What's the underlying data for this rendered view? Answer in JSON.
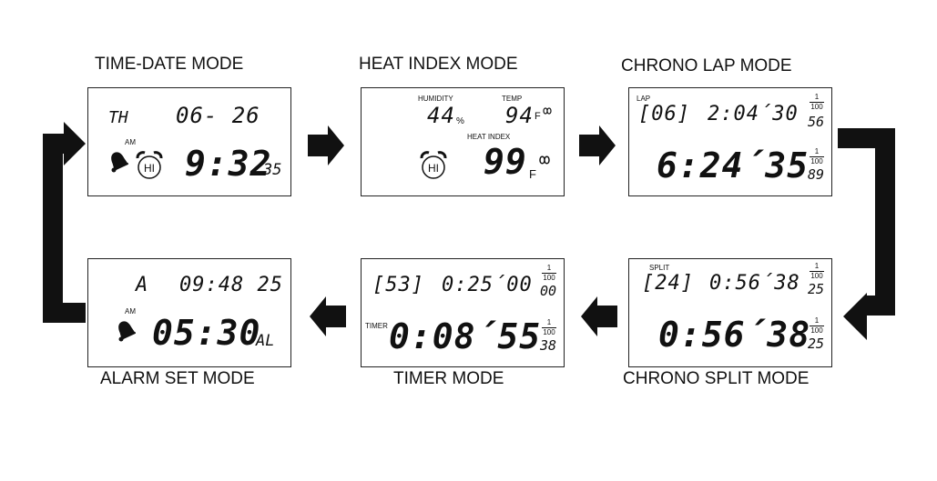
{
  "modes": {
    "time_date": {
      "title": "TIME-DATE MODE",
      "day": "TH",
      "date": "06- 26",
      "am": "AM",
      "hi": "HI",
      "time": "9:32",
      "seconds": "35"
    },
    "heat_index": {
      "title": "HEAT INDEX MODE",
      "humidity_label": "HUMIDITY",
      "humidity": "44",
      "humidity_unit": "%",
      "temp_label": "TEMP",
      "temp": "94",
      "temp_unit": "F",
      "heat_index_label": "HEAT INDEX",
      "hi": "HI",
      "heat_index": "99",
      "heat_index_unit": "F"
    },
    "chrono_lap": {
      "title": "CHRONO LAP MODE",
      "lap_label": "LAP",
      "lap": "[06]",
      "lap_time": "2:04´30",
      "lap_hundredths": "56",
      "total_time": "6:24´35",
      "total_hundredths": "89",
      "frac_num": "1",
      "frac_den": "100"
    },
    "chrono_split": {
      "title": "CHRONO SPLIT MODE",
      "split_label": "SPLIT",
      "split": "[24]",
      "split_time": "0:56´38",
      "split_hundredths": "25",
      "total_time": "0:56´38",
      "total_hundredths": "25",
      "frac_num": "1",
      "frac_den": "100"
    },
    "timer": {
      "title": "TIMER MODE",
      "count": "[53]",
      "set_time": "0:25´00",
      "set_hundredths": "00",
      "timer_label": "TIMER",
      "time": "0:08´55",
      "hundredths": "38",
      "frac_num": "1",
      "frac_den": "100"
    },
    "alarm_set": {
      "title": "ALARM SET MODE",
      "a_label": "A",
      "current_time": "09:48 25",
      "am": "AM",
      "alarm_time": "05:30",
      "al_label": "AL"
    }
  }
}
